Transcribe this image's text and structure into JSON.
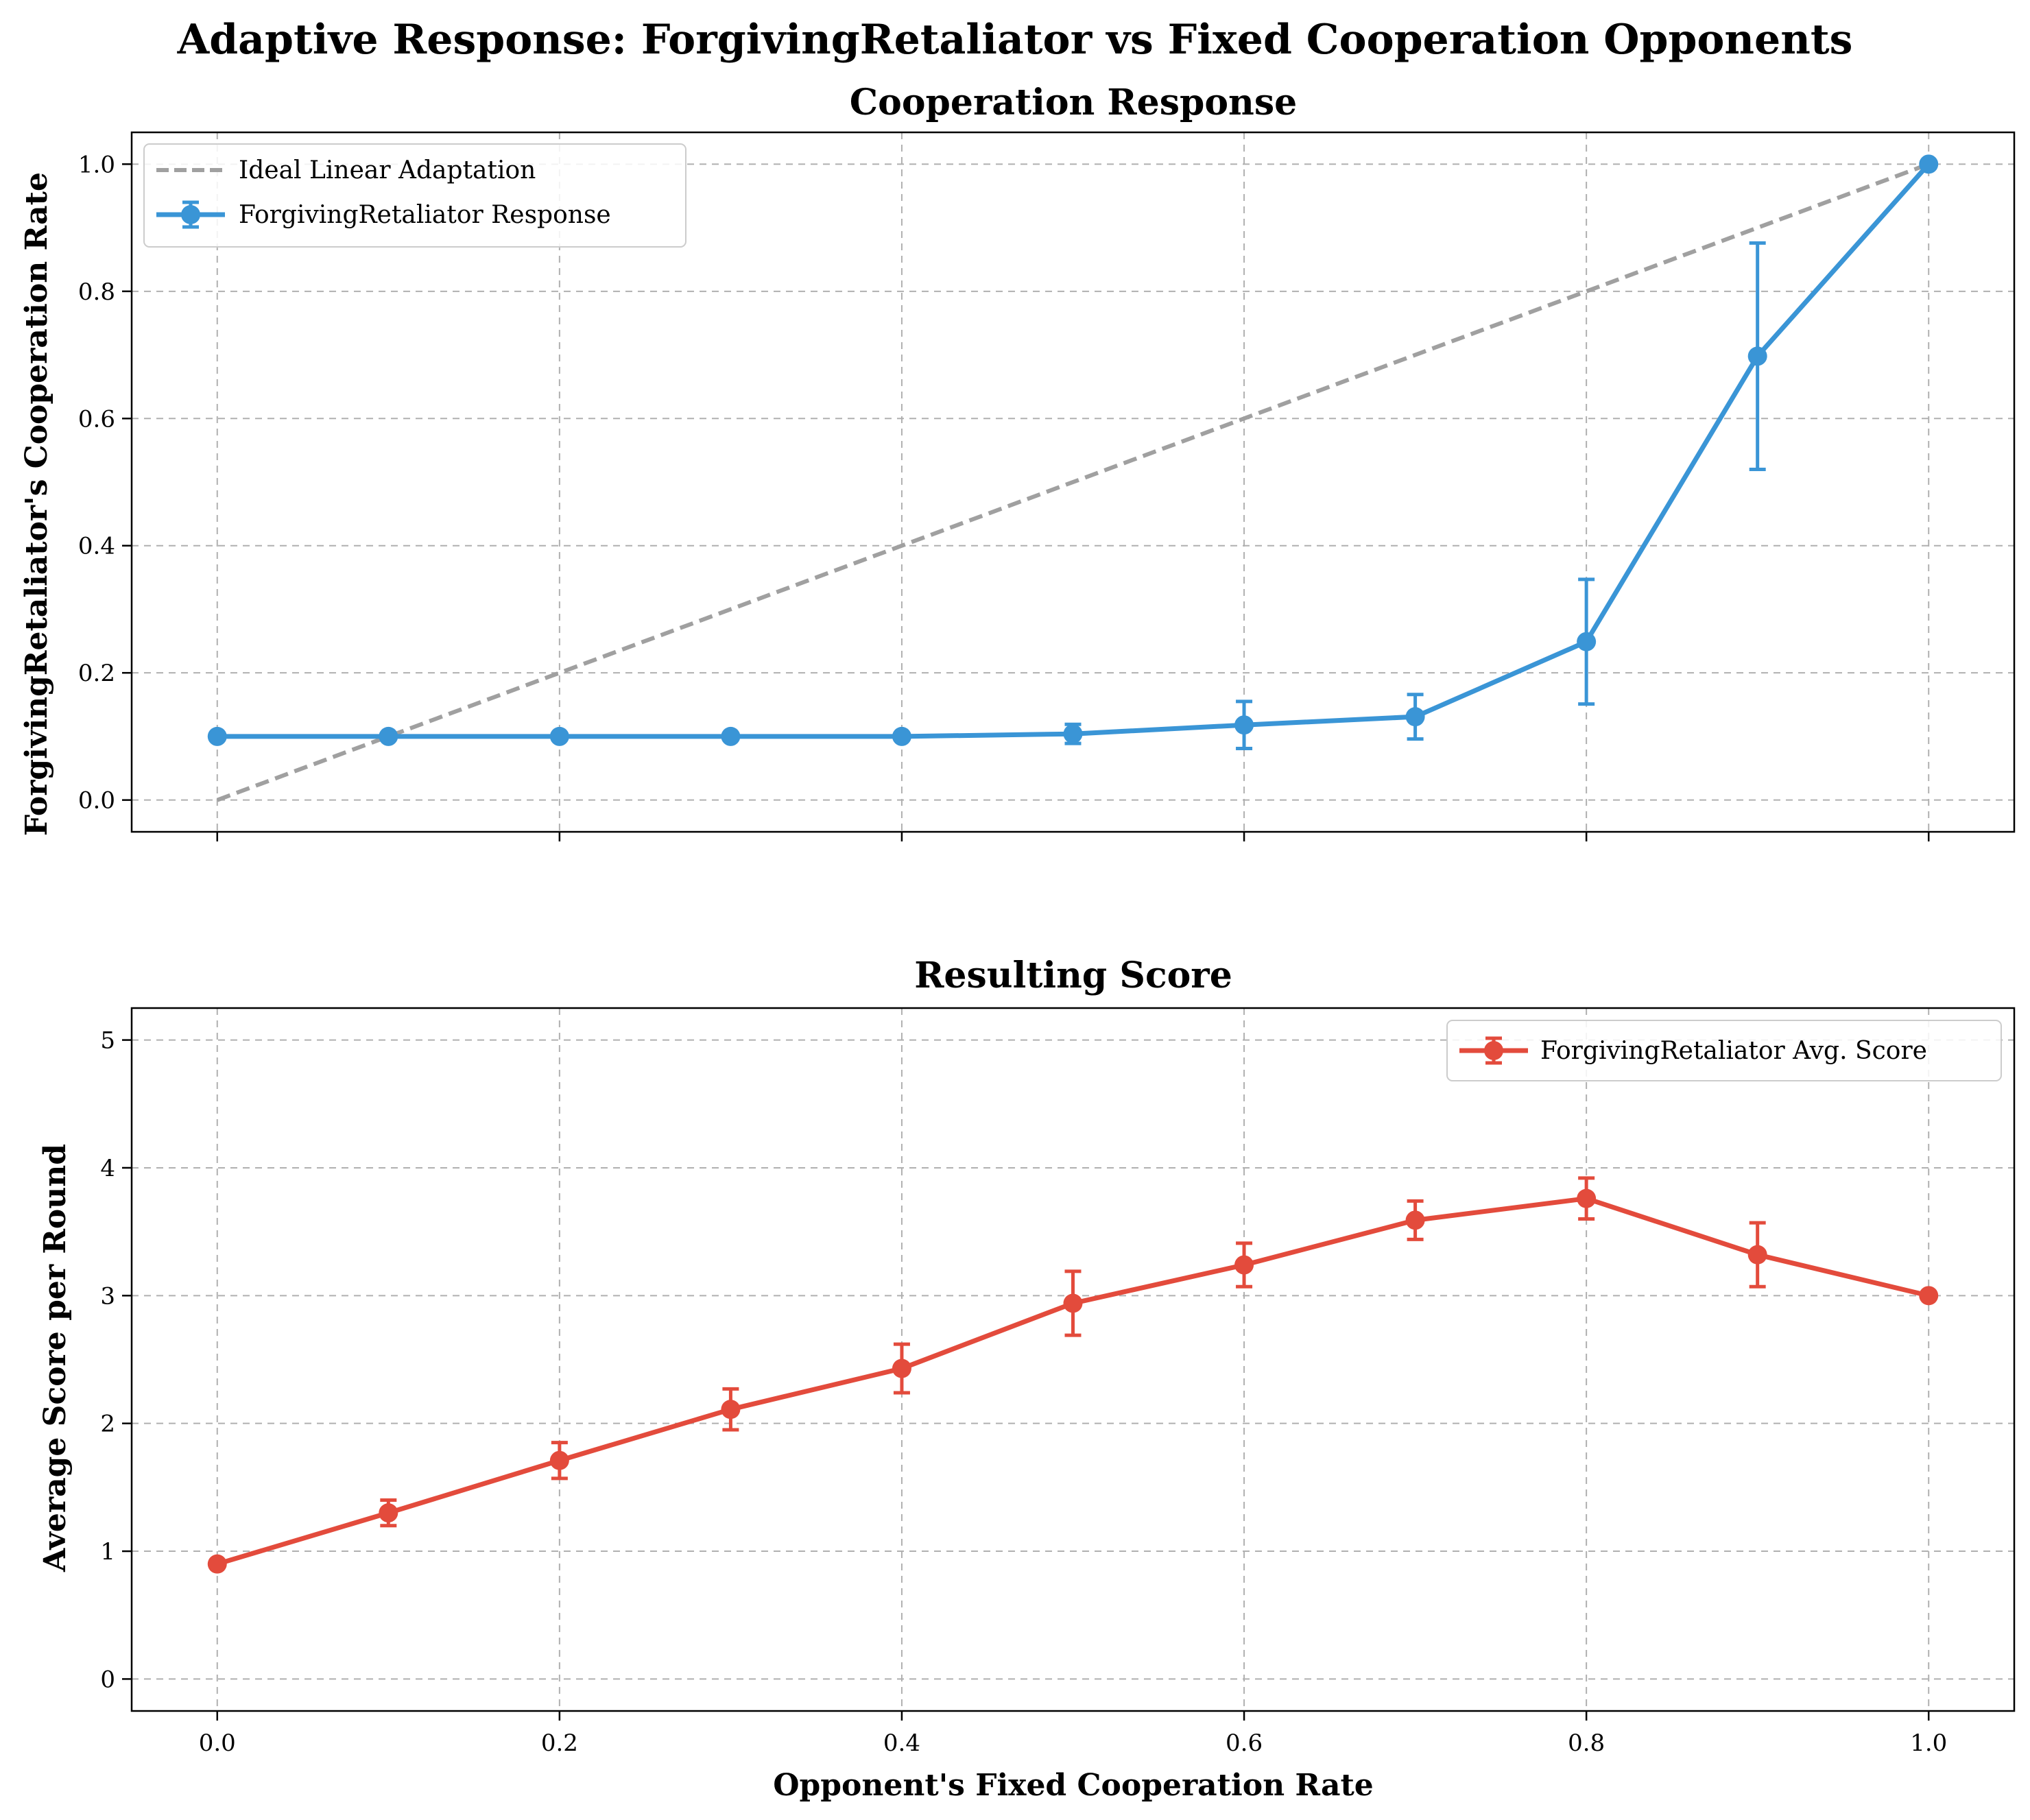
{
  "figure": {
    "suptitle": "Adaptive Response: ForgivingRetaliator vs Fixed Cooperation Opponents"
  },
  "chart_data": [
    {
      "type": "line",
      "title": "Cooperation Response",
      "xlabel": "",
      "ylabel": "ForgivingRetaliator's Cooperation Rate",
      "xlim": [
        -0.05,
        1.05
      ],
      "ylim": [
        -0.05,
        1.05
      ],
      "xticks": [
        0.0,
        0.2,
        0.4,
        0.6,
        0.8,
        1.0
      ],
      "xtick_labels": [
        "",
        "",
        "",
        "",
        "",
        ""
      ],
      "yticks": [
        0.0,
        0.2,
        0.4,
        0.6,
        0.8,
        1.0
      ],
      "ytick_labels": [
        "0.0",
        "0.2",
        "0.4",
        "0.6",
        "0.8",
        "1.0"
      ],
      "grid": true,
      "legend_position": "top-left",
      "series": [
        {
          "name": "Ideal Linear Adaptation",
          "style": "dashed",
          "color": "#a0a0a0",
          "x": [
            0.0,
            1.0
          ],
          "y": [
            0.0,
            1.0
          ]
        },
        {
          "name": "ForgivingRetaliator Response",
          "style": "solid-markers-errorbars",
          "color": "#3a95d6",
          "x": [
            0.0,
            0.1,
            0.2,
            0.3,
            0.4,
            0.5,
            0.6,
            0.7,
            0.8,
            0.9,
            1.0
          ],
          "y": [
            0.1,
            0.1,
            0.1,
            0.1,
            0.1,
            0.104,
            0.118,
            0.131,
            0.249,
            0.698,
            1.0
          ],
          "err": [
            0.0,
            0.0,
            0.0,
            0.0,
            0.0,
            0.015,
            0.037,
            0.035,
            0.098,
            0.178,
            0.0
          ]
        }
      ]
    },
    {
      "type": "line",
      "title": "Resulting Score",
      "xlabel": "Opponent's Fixed Cooperation Rate",
      "ylabel": "Average Score per Round",
      "xlim": [
        -0.05,
        1.05
      ],
      "ylim": [
        -0.25,
        5.25
      ],
      "xticks": [
        0.0,
        0.2,
        0.4,
        0.6,
        0.8,
        1.0
      ],
      "xtick_labels": [
        "0.0",
        "0.2",
        "0.4",
        "0.6",
        "0.8",
        "1.0"
      ],
      "yticks": [
        0,
        1,
        2,
        3,
        4,
        5
      ],
      "ytick_labels": [
        "0",
        "1",
        "2",
        "3",
        "4",
        "5"
      ],
      "grid": true,
      "legend_position": "top-right",
      "series": [
        {
          "name": "ForgivingRetaliator Avg. Score",
          "style": "solid-markers-errorbars",
          "color": "#e34b3c",
          "x": [
            0.0,
            0.1,
            0.2,
            0.3,
            0.4,
            0.5,
            0.6,
            0.7,
            0.8,
            0.9,
            1.0
          ],
          "y": [
            0.9,
            1.3,
            1.71,
            2.11,
            2.43,
            2.94,
            3.24,
            3.59,
            3.76,
            3.32,
            3.0
          ],
          "err": [
            0.0,
            0.1,
            0.14,
            0.16,
            0.19,
            0.25,
            0.17,
            0.15,
            0.16,
            0.25,
            0.0
          ]
        }
      ]
    }
  ]
}
